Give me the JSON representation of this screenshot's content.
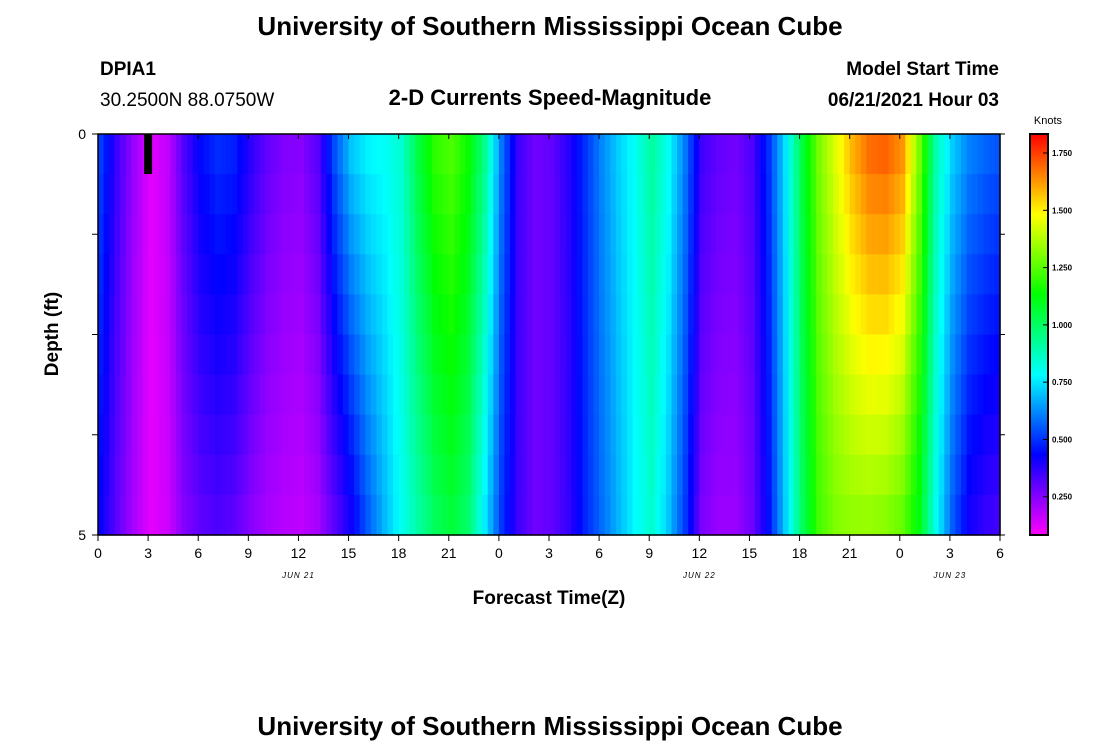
{
  "header": {
    "title": "University of Southern Mississippi Ocean Cube",
    "station": "DPIA1",
    "coordinates": "30.2500N  88.0750W",
    "subtitle": "2-D Currents Speed-Magnitude",
    "model_start_label": "Model Start Time",
    "model_start_value": "06/21/2021 Hour 03"
  },
  "footer": {
    "title": "University of Southern Mississippi Ocean Cube"
  },
  "chart_data": {
    "type": "heatmap",
    "title": "2-D Currents Speed-Magnitude",
    "xlabel": "Forecast Time(Z)",
    "ylabel": "Depth (ft)",
    "x_tick_labels": [
      "0",
      "3",
      "6",
      "9",
      "12",
      "15",
      "18",
      "21",
      "0",
      "3",
      "6",
      "9",
      "12",
      "15",
      "18",
      "21",
      "0",
      "3",
      "6"
    ],
    "x_hours_since_start": [
      0,
      3,
      6,
      9,
      12,
      15,
      18,
      21,
      24,
      27,
      30,
      33,
      36,
      39,
      42,
      45,
      48,
      51,
      54
    ],
    "date_labels": [
      {
        "label": "JUN 21",
        "hour": 12
      },
      {
        "label": "JUN 22",
        "hour": 36
      },
      {
        "label": "JUN 23",
        "hour": 51
      }
    ],
    "y_tick_labels": [
      "0",
      "5"
    ],
    "ylim": [
      0,
      5
    ],
    "xlim_hours": [
      0,
      54
    ],
    "current_time_hour": 3,
    "colorbar": {
      "unit": "Knots",
      "min": 0.083,
      "max": 1.833,
      "tick_labels": [
        "0.250",
        "0.500",
        "0.750",
        "1.000",
        "1.250",
        "1.500",
        "1.750"
      ],
      "tick_values": [
        0.25,
        0.5,
        0.75,
        1.0,
        1.25,
        1.5,
        1.75
      ],
      "colors": [
        "#ff00ff",
        "#8000ff",
        "#0000ff",
        "#0080ff",
        "#00ffff",
        "#00ff80",
        "#00ff00",
        "#80ff00",
        "#ffff00",
        "#ff8000",
        "#ff0000"
      ]
    },
    "depth_layers_ft": [
      0.25,
      0.75,
      1.25,
      1.75,
      2.25,
      2.75,
      3.25,
      3.75,
      4.25,
      4.75
    ],
    "speed_profile_knots": {
      "hours": [
        0,
        1,
        2,
        3,
        4,
        5,
        6,
        7,
        8,
        9,
        10,
        11,
        12,
        13,
        14,
        15,
        16,
        17,
        18,
        19,
        20,
        21,
        22,
        23,
        24,
        25,
        26,
        27,
        28,
        29,
        30,
        31,
        32,
        33,
        34,
        35,
        36,
        37,
        38,
        39,
        40,
        41,
        42,
        43,
        44,
        45,
        46,
        47,
        48,
        49,
        50,
        51,
        52,
        53,
        54
      ],
      "surface": [
        0.52,
        0.35,
        0.22,
        0.12,
        0.17,
        0.33,
        0.45,
        0.5,
        0.48,
        0.38,
        0.3,
        0.26,
        0.25,
        0.32,
        0.55,
        0.72,
        0.78,
        0.8,
        0.85,
        1.05,
        1.2,
        1.25,
        1.15,
        0.95,
        0.6,
        0.35,
        0.28,
        0.3,
        0.38,
        0.5,
        0.62,
        0.72,
        0.8,
        0.92,
        0.8,
        0.6,
        0.35,
        0.3,
        0.28,
        0.33,
        0.5,
        0.75,
        1.05,
        1.3,
        1.45,
        1.6,
        1.7,
        1.72,
        1.65,
        1.3,
        0.9,
        0.72,
        0.62,
        0.58,
        0.55
      ],
      "bottom": [
        0.42,
        0.3,
        0.2,
        0.12,
        0.15,
        0.25,
        0.3,
        0.32,
        0.3,
        0.24,
        0.2,
        0.18,
        0.17,
        0.2,
        0.3,
        0.4,
        0.55,
        0.68,
        0.8,
        0.9,
        1.0,
        1.05,
        0.98,
        0.75,
        0.5,
        0.35,
        0.28,
        0.3,
        0.36,
        0.48,
        0.58,
        0.68,
        0.78,
        0.85,
        0.7,
        0.5,
        0.26,
        0.22,
        0.22,
        0.28,
        0.45,
        0.72,
        1.0,
        1.22,
        1.3,
        1.32,
        1.32,
        1.3,
        1.25,
        1.1,
        0.8,
        0.55,
        0.4,
        0.35,
        0.33
      ]
    }
  }
}
